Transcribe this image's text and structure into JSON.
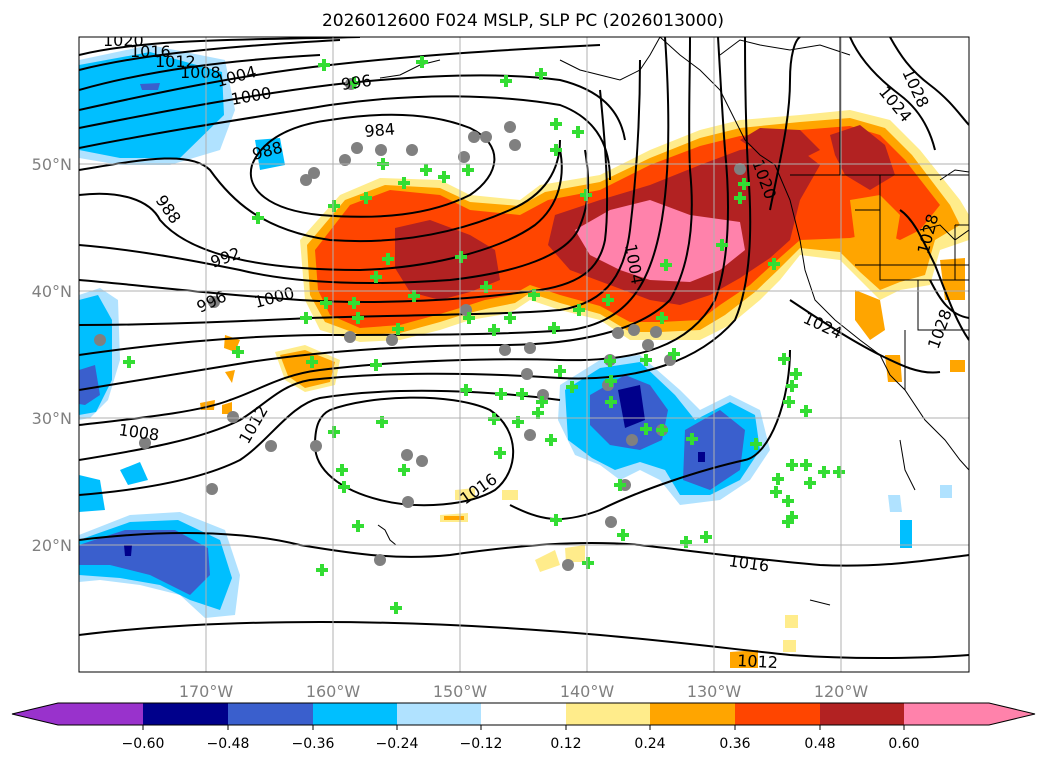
{
  "title": "2026012600 F024 MSLP, SLP PC (2026013000)",
  "lon_ticks": [
    "170°W",
    "160°W",
    "150°W",
    "140°W",
    "130°W",
    "120°W"
  ],
  "lat_ticks": [
    "50°N",
    "40°N",
    "30°N",
    "20°N"
  ],
  "map_extent": {
    "lon": [
      -180,
      -110
    ],
    "lat": [
      10,
      60
    ]
  },
  "grid": true,
  "contour_labels": [
    "1020",
    "1016",
    "1012",
    "1008",
    "1004",
    "1000",
    "996",
    "988",
    "984",
    "988",
    "992",
    "996",
    "1000",
    "1004",
    "1008",
    "1012",
    "1016",
    "1016",
    "1012",
    "1024",
    "1028",
    "1028",
    "1028",
    "1024",
    "1020"
  ],
  "colorbar": {
    "ticks": [
      "−0.60",
      "−0.48",
      "−0.36",
      "−0.24",
      "−0.12",
      "0.12",
      "0.24",
      "0.36",
      "0.48",
      "0.60"
    ],
    "colors": [
      "#9932cc",
      "#00008b",
      "#3a5fcd",
      "#00bfff",
      "#b0e2ff",
      "#ffffff",
      "#ffec8b",
      "#ffa500",
      "#ff4500",
      "#b22222",
      "#ff82ab"
    ],
    "extend": "both"
  }
}
